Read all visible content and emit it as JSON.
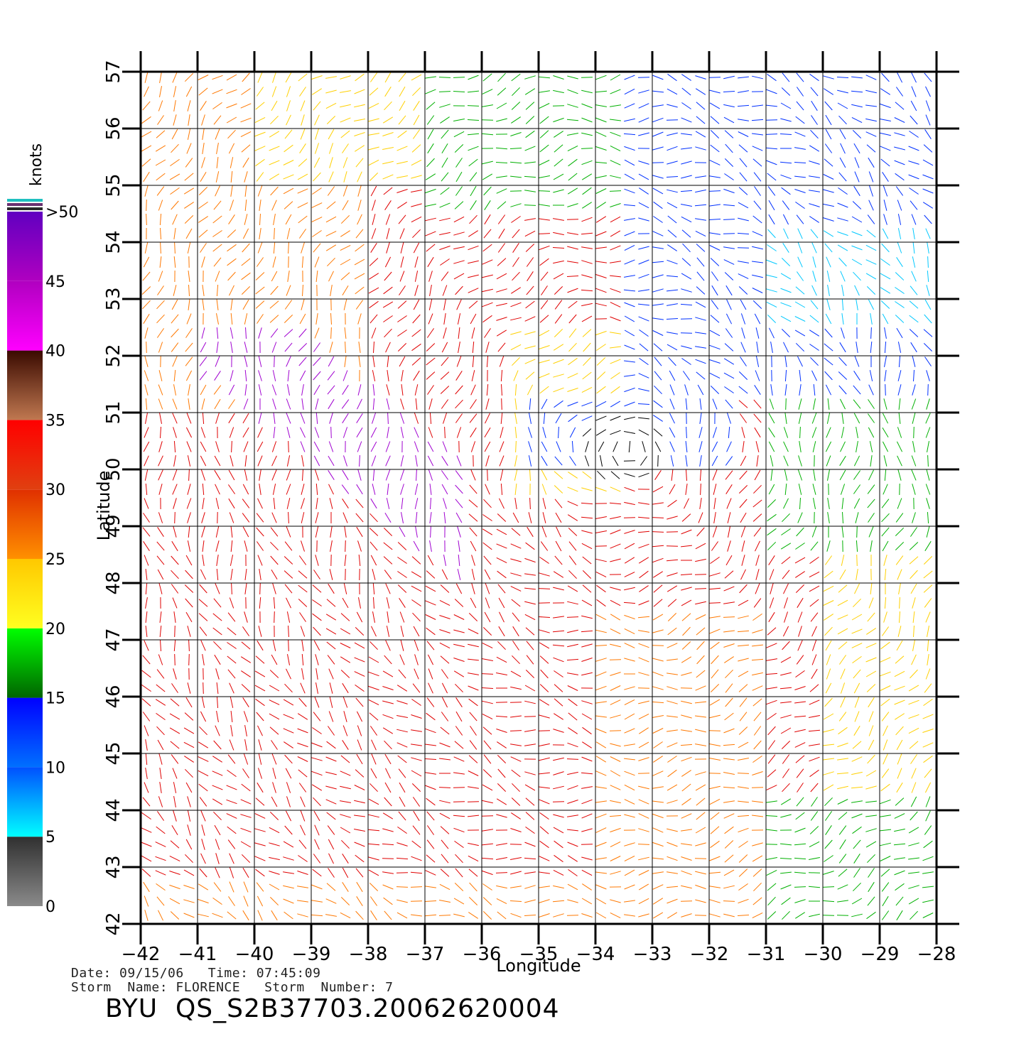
{
  "map": {
    "xlabel": "Longitude",
    "ylabel": "Latitude",
    "lon_range": [
      -42,
      -28
    ],
    "lat_range": [
      42,
      57
    ],
    "lon_ticks": [
      "−42",
      "−41",
      "−40",
      "−39",
      "−38",
      "−37",
      "−36",
      "−35",
      "−34",
      "−33",
      "−32",
      "−31",
      "−30",
      "−29",
      "−28"
    ],
    "lat_ticks": [
      "42",
      "43",
      "44",
      "45",
      "46",
      "47",
      "48",
      "49",
      "50",
      "51",
      "52",
      "53",
      "54",
      "55",
      "56",
      "57"
    ],
    "grid": true
  },
  "colorbar": {
    "unit_label": "knots",
    "labels": [
      "0",
      "5",
      "10",
      "15",
      "20",
      "25",
      "30",
      "35",
      "40",
      "45",
      ">50"
    ],
    "segments": [
      {
        "from": 0,
        "to": 5,
        "top": "#303030",
        "bottom": "#8a8a8a"
      },
      {
        "from": 5,
        "to": 10,
        "top": "#0050ff",
        "bottom": "#00ffff"
      },
      {
        "from": 10,
        "to": 15,
        "top": "#0000ff",
        "bottom": "#0070ff"
      },
      {
        "from": 15,
        "to": 20,
        "top": "#00ff00",
        "bottom": "#006400"
      },
      {
        "from": 20,
        "to": 25,
        "top": "#ffc800",
        "bottom": "#ffff20"
      },
      {
        "from": 25,
        "to": 30,
        "top": "#e03000",
        "bottom": "#ff9000"
      },
      {
        "from": 30,
        "to": 35,
        "top": "#ff0000",
        "bottom": "#e04010"
      },
      {
        "from": 35,
        "to": 40,
        "top": "#3a0a00",
        "bottom": "#c07850"
      },
      {
        "from": 40,
        "to": 45,
        "top": "#b000c0",
        "bottom": "#ff00ff"
      },
      {
        "from": 45,
        "to": 50,
        "top": "#6000c0",
        "bottom": "#b000c0"
      }
    ],
    "cap_colors": [
      "#20c0c0",
      "#6a3070",
      "#2a2a2a"
    ]
  },
  "wind_colors": {
    "calm": "#000000",
    "light": "#00c8ff",
    "moderate": "#0030ff",
    "fresh": "#00b000",
    "strong": "#ffd000",
    "near_gale": "#ff7800",
    "gale": "#e00000",
    "storm": "#a000d0"
  },
  "metadata": {
    "line1": "Date: 09/15/06   Time: 07:45:09",
    "line2": "Storm  Name: FLORENCE   Storm  Number: 7",
    "product_id": "BYU  QS_S2B37703.20062620004"
  }
}
